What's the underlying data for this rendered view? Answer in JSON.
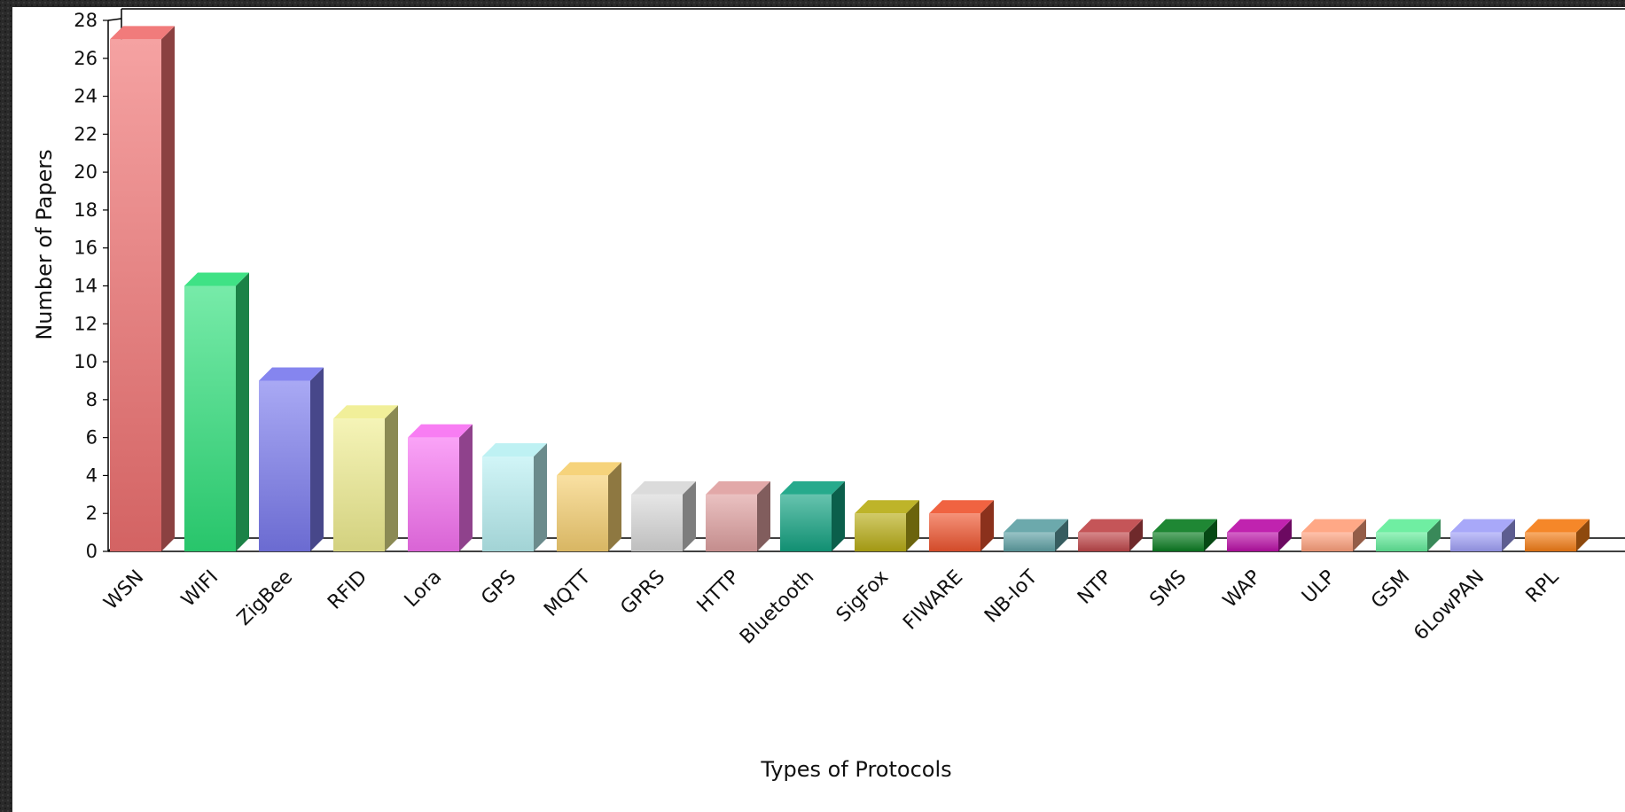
{
  "chart_data": {
    "type": "bar",
    "style": "3d",
    "categories": [
      "WSN",
      "WIFI",
      "ZigBee",
      "RFID",
      "Lora",
      "GPS",
      "MQTT",
      "GPRS",
      "HTTP",
      "Bluetooth",
      "SigFox",
      "FIWARE",
      "NB-IoT",
      "NTP",
      "SMS",
      "WAP",
      "ULP",
      "GSM",
      "6LowPAN",
      "RPL"
    ],
    "values": [
      27,
      14,
      9,
      7,
      6,
      5,
      4,
      3,
      3,
      3,
      2,
      2,
      1,
      1,
      1,
      1,
      1,
      1,
      1,
      1
    ],
    "colors": [
      "#f07070",
      "#2ee07a",
      "#7a7aee",
      "#f0ee90",
      "#f772f2",
      "#b8f0f2",
      "#f5cf70",
      "#d8d8d8",
      "#dfa0a0",
      "#13a382",
      "#b8ad16",
      "#ef5530",
      "#5fa1a5",
      "#c0464a",
      "#0b7d22",
      "#bb10a8",
      "#ffa07c",
      "#62ec9a",
      "#a0a0f8",
      "#f47d16"
    ],
    "title": "",
    "xlabel": "Types of Protocols",
    "ylabel": "Number of Papers",
    "ylim": [
      0,
      28
    ],
    "yticks": [
      0,
      2,
      4,
      6,
      8,
      10,
      12,
      14,
      16,
      18,
      20,
      22,
      24,
      26,
      28
    ],
    "grid": false,
    "legend": "none"
  }
}
